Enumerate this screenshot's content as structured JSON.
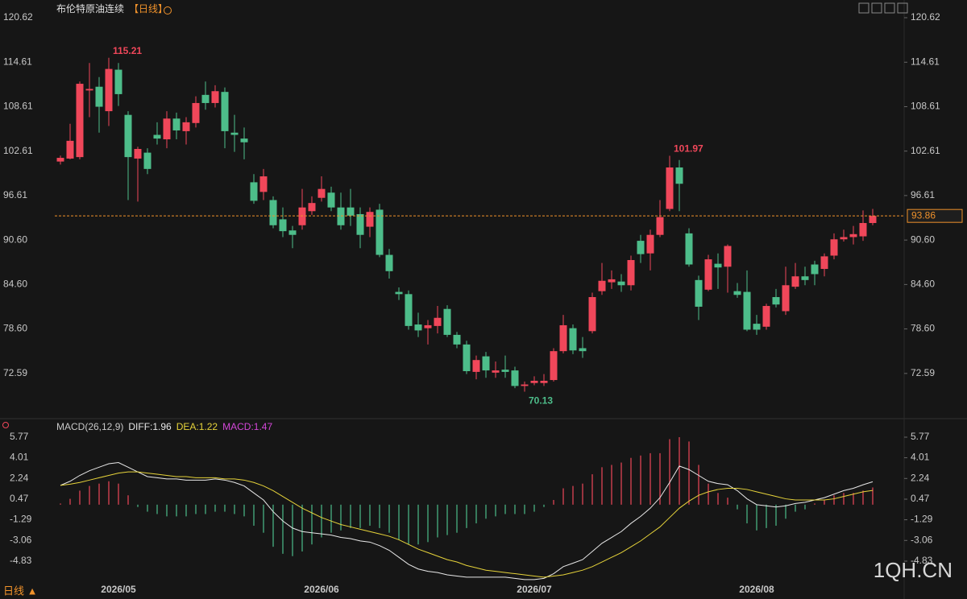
{
  "chart_data": [
    {
      "type": "candlestick",
      "title": "布伦特原油连续",
      "subtitle": "【日线】",
      "categories": [
        null,
        null,
        null,
        null,
        null,
        null,
        "2026/05",
        null,
        null,
        null,
        null,
        null,
        null,
        null,
        null,
        null,
        null,
        null,
        null,
        null,
        null,
        null,
        null,
        null,
        null,
        null,
        null,
        "2026/06",
        null,
        null,
        null,
        null,
        null,
        null,
        null,
        null,
        null,
        null,
        null,
        null,
        null,
        null,
        null,
        null,
        null,
        null,
        null,
        null,
        null,
        "2026/07",
        null,
        null,
        null,
        null,
        null,
        null,
        null,
        null,
        null,
        null,
        null,
        null,
        null,
        null,
        null,
        null,
        null,
        null,
        null,
        null,
        null,
        null,
        "2026/08",
        null,
        null,
        null,
        null,
        null,
        null,
        null,
        null,
        null,
        null,
        null,
        null
      ],
      "open": [
        101.2,
        101.6,
        101.8,
        110.8,
        111.3,
        108.0,
        113.6,
        107.5,
        101.6,
        102.4,
        104.8,
        104.2,
        107.0,
        105.3,
        106.4,
        110.2,
        109.1,
        110.6,
        105.1,
        104.3,
        98.4,
        97.1,
        96.0,
        93.4,
        91.9,
        92.6,
        94.5,
        96.3,
        97.0,
        95.0,
        95.0,
        94.1,
        92.4,
        94.7,
        88.6,
        83.6,
        83.3,
        79.2,
        78.7,
        79.0,
        81.3,
        77.8,
        76.5,
        72.8,
        74.9,
        72.7,
        73.1,
        73.0,
        70.9,
        71.3,
        71.3,
        71.7,
        75.6,
        78.7,
        76.0,
        78.3,
        83.7,
        84.9,
        85.0,
        84.5,
        90.5,
        88.8,
        91.3,
        94.8,
        100.4,
        91.5,
        85.2,
        83.9,
        87.4,
        87.0,
        83.7,
        83.6,
        79.3,
        78.9,
        82.9,
        81.0,
        84.3,
        85.7,
        87.3,
        86.7,
        88.5,
        90.7,
        91.0,
        91.1,
        92.9
      ],
      "high": [
        102.0,
        106.3,
        112.0,
        114.5,
        112.6,
        115.21,
        114.5,
        108.0,
        103.2,
        103.0,
        106.5,
        108.0,
        107.8,
        107.2,
        110.0,
        112.0,
        111.5,
        111.2,
        107.5,
        105.8,
        99.5,
        100.2,
        96.5,
        95.0,
        92.5,
        97.5,
        96.5,
        99.2,
        97.8,
        97.0,
        97.5,
        95.0,
        95.0,
        95.5,
        89.4,
        84.2,
        83.8,
        80.8,
        79.8,
        81.7,
        81.8,
        78.2,
        77.0,
        75.0,
        75.5,
        74.2,
        75.0,
        73.5,
        71.5,
        72.2,
        72.5,
        76.0,
        80.5,
        79.2,
        77.5,
        83.5,
        87.5,
        86.5,
        86.0,
        88.5,
        91.3,
        92.0,
        96.0,
        101.97,
        101.4,
        92.2,
        85.8,
        88.6,
        88.8,
        90.0,
        84.8,
        86.5,
        80.5,
        82.0,
        84.0,
        87.0,
        87.5,
        87.0,
        87.8,
        88.8,
        91.5,
        92.0,
        92.5,
        94.6,
        94.8
      ],
      "low": [
        100.8,
        101.5,
        101.5,
        107.2,
        105.1,
        106.0,
        108.7,
        96.0,
        95.8,
        99.5,
        103.5,
        103.0,
        104.2,
        103.5,
        105.8,
        108.2,
        108.5,
        103.0,
        102.5,
        101.5,
        95.5,
        96.0,
        92.2,
        91.0,
        89.5,
        92.0,
        94.0,
        95.8,
        94.5,
        92.0,
        92.5,
        89.5,
        91.0,
        88.3,
        85.4,
        82.5,
        78.5,
        77.5,
        76.5,
        78.0,
        77.5,
        76.0,
        72.5,
        71.8,
        72.0,
        72.0,
        72.0,
        70.6,
        70.13,
        71.0,
        70.9,
        71.5,
        75.3,
        75.2,
        74.7,
        78.0,
        83.2,
        84.0,
        83.6,
        83.8,
        87.5,
        86.5,
        91.0,
        94.5,
        94.5,
        87.0,
        79.8,
        83.7,
        84.0,
        83.5,
        82.8,
        78.3,
        77.8,
        78.5,
        81.5,
        80.5,
        84.0,
        84.5,
        84.5,
        85.7,
        88.0,
        90.4,
        90.0,
        90.5,
        92.6
      ],
      "close": [
        101.7,
        104.0,
        111.7,
        111.0,
        108.6,
        113.7,
        110.3,
        101.8,
        102.9,
        100.2,
        104.3,
        107.0,
        105.4,
        106.5,
        109.1,
        109.1,
        110.7,
        105.3,
        104.8,
        103.8,
        95.9,
        99.2,
        92.6,
        91.8,
        91.3,
        95.0,
        95.6,
        97.5,
        95.0,
        92.6,
        93.9,
        91.3,
        94.4,
        88.6,
        86.4,
        83.3,
        79.0,
        78.4,
        79.1,
        80.1,
        77.8,
        76.5,
        72.9,
        74.4,
        73.0,
        73.0,
        72.8,
        70.9,
        71.1,
        71.6,
        71.6,
        75.6,
        79.1,
        75.7,
        75.6,
        82.9,
        85.1,
        85.3,
        84.5,
        87.9,
        88.7,
        91.3,
        93.7,
        100.4,
        98.2,
        87.3,
        81.6,
        88.0,
        86.9,
        89.8,
        83.2,
        78.5,
        78.5,
        81.7,
        81.9,
        84.5,
        85.7,
        85.2,
        86.0,
        88.4,
        90.7,
        91.0,
        91.4,
        92.9,
        93.86
      ],
      "up_color": "#f0475a",
      "down_color": "#4dbd8a",
      "last_color": "#f0922b",
      "ylim": [
        67.03,
        122.14
      ],
      "yticks": [
        72.59,
        {
          "value": 78.6,
          "label": "78.60"
        },
        {
          "value": 84.6,
          "label": "84.60"
        },
        {
          "value": 90.6,
          "label": "90.60"
        },
        96.61,
        102.61,
        108.61,
        114.61,
        120.62
      ]
    },
    {
      "type": "macd",
      "legend": [
        "MACD(26,12,9)",
        "DIFF:1.96",
        "DEA:1.22",
        "MACD:1.47"
      ],
      "legend_colors": [
        "#c8c8c8",
        "#e8e8e8",
        "#e6d33a",
        "#d347d8"
      ],
      "series": [
        {
          "name": "DIFF",
          "color": "#e8e8e8",
          "values": [
            1.65,
            2.0,
            2.5,
            2.9,
            3.2,
            3.5,
            3.6,
            3.2,
            2.8,
            2.4,
            2.3,
            2.2,
            2.2,
            2.1,
            2.1,
            2.1,
            2.2,
            2.1,
            1.9,
            1.6,
            1.0,
            0.4,
            -0.6,
            -1.4,
            -2.0,
            -2.3,
            -2.4,
            -2.5,
            -2.6,
            -2.8,
            -2.9,
            -3.1,
            -3.2,
            -3.5,
            -3.9,
            -4.5,
            -5.1,
            -5.5,
            -5.7,
            -5.8,
            -6.0,
            -6.1,
            -6.2,
            -6.2,
            -6.2,
            -6.2,
            -6.2,
            -6.3,
            -6.4,
            -6.4,
            -6.3,
            -5.9,
            -5.3,
            -5.0,
            -4.7,
            -4.0,
            -3.3,
            -2.8,
            -2.3,
            -1.6,
            -1.0,
            -0.3,
            0.6,
            1.9,
            3.3,
            3.0,
            2.5,
            2.0,
            1.8,
            1.7,
            1.2,
            0.5,
            0.0,
            -0.1,
            -0.2,
            -0.1,
            0.1,
            0.2,
            0.4,
            0.6,
            0.9,
            1.2,
            1.4,
            1.7,
            1.96
          ]
        },
        {
          "name": "DEA",
          "color": "#e6d33a",
          "values": [
            1.65,
            1.75,
            1.9,
            2.1,
            2.3,
            2.5,
            2.7,
            2.8,
            2.8,
            2.7,
            2.6,
            2.5,
            2.4,
            2.4,
            2.3,
            2.3,
            2.3,
            2.2,
            2.2,
            2.1,
            1.9,
            1.6,
            1.2,
            0.7,
            0.2,
            -0.3,
            -0.7,
            -1.1,
            -1.4,
            -1.7,
            -1.9,
            -2.1,
            -2.3,
            -2.5,
            -2.7,
            -3.0,
            -3.4,
            -3.8,
            -4.1,
            -4.4,
            -4.7,
            -4.9,
            -5.2,
            -5.4,
            -5.6,
            -5.7,
            -5.8,
            -5.9,
            -6.0,
            -6.1,
            -6.2,
            -6.1,
            -6.0,
            -5.8,
            -5.6,
            -5.3,
            -4.9,
            -4.5,
            -4.1,
            -3.6,
            -3.1,
            -2.5,
            -1.9,
            -1.1,
            -0.3,
            0.3,
            0.8,
            1.1,
            1.3,
            1.4,
            1.4,
            1.3,
            1.1,
            0.9,
            0.7,
            0.5,
            0.4,
            0.4,
            0.4,
            0.4,
            0.5,
            0.7,
            0.9,
            1.1,
            1.22
          ]
        }
      ],
      "histogram": [
        0.1,
        0.5,
        1.2,
        1.6,
        1.8,
        2.0,
        1.8,
        0.8,
        -0.2,
        -0.6,
        -0.8,
        -1.0,
        -1.0,
        -1.0,
        -0.8,
        -0.8,
        -0.6,
        -0.6,
        -0.8,
        -1.0,
        -1.8,
        -2.4,
        -3.6,
        -4.2,
        -4.4,
        -4.0,
        -3.4,
        -2.8,
        -2.4,
        -2.2,
        -2.0,
        -2.0,
        -1.8,
        -2.0,
        -2.4,
        -3.0,
        -3.4,
        -3.4,
        -3.2,
        -2.8,
        -2.6,
        -2.4,
        -2.0,
        -1.6,
        -1.2,
        -1.0,
        -0.8,
        -0.8,
        -0.8,
        -0.6,
        -0.2,
        0.4,
        1.4,
        1.6,
        1.8,
        2.6,
        3.2,
        3.4,
        3.6,
        4.0,
        4.2,
        4.4,
        4.4,
        5.6,
        5.77,
        5.4,
        3.4,
        1.8,
        1.0,
        0.6,
        -0.4,
        -1.6,
        -2.2,
        -2.0,
        -1.8,
        -1.2,
        -0.6,
        -0.4,
        0.1,
        0.4,
        0.8,
        1.0,
        1.0,
        1.2,
        1.47
      ],
      "up_color": "#f0475a",
      "down_color": "#4dbd8a",
      "ylim": [
        -6.55,
        6.32
      ],
      "yticks": [
        -4.83,
        -3.06,
        -1.29,
        0.47,
        2.24,
        4.01,
        5.77
      ]
    }
  ],
  "footer": {
    "period": "日线 ▲",
    "watermark": "1QH.CN"
  }
}
